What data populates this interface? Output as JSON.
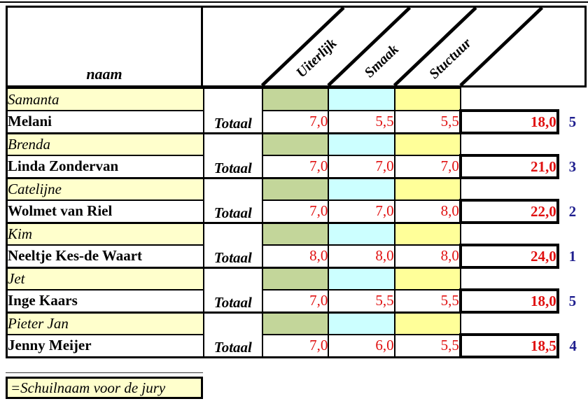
{
  "header": {
    "name_column_label": "naam",
    "totaal_label": "Totaal",
    "criteria": [
      "Uiterlijk",
      "Smaak",
      "Stuctuur"
    ]
  },
  "pairs": [
    {
      "pseudonym": "Samanta",
      "name": "Melani",
      "scores": [
        "7,0",
        "5,5",
        "5,5"
      ],
      "total": "18,0",
      "rank": "5"
    },
    {
      "pseudonym": "Brenda",
      "name": "Linda Zondervan",
      "scores": [
        "7,0",
        "7,0",
        "7,0"
      ],
      "total": "21,0",
      "rank": "3"
    },
    {
      "pseudonym": "Catelijne",
      "name": "Wolmet van Riel",
      "scores": [
        "7,0",
        "7,0",
        "8,0"
      ],
      "total": "22,0",
      "rank": "2"
    },
    {
      "pseudonym": "Kim",
      "name": "Neeltje Kes-de Waart",
      "scores": [
        "8,0",
        "8,0",
        "8,0"
      ],
      "total": "24,0",
      "rank": "1"
    },
    {
      "pseudonym": "Jet",
      "name": "Inge Kaars",
      "scores": [
        "7,0",
        "5,5",
        "5,5"
      ],
      "total": "18,0",
      "rank": "5"
    },
    {
      "pseudonym": "Pieter Jan",
      "name": "Jenny Meijer",
      "scores": [
        "7,0",
        "6,0",
        "5,5"
      ],
      "total": "18,5",
      "rank": "4"
    }
  ],
  "legend": {
    "text": "=Schuilnaam voor de jury"
  },
  "colors": {
    "pseudonym_row": "#FFFFCC",
    "uiterlijk_cell": "#C3D69A",
    "smaak_cell": "#CCFFFF",
    "stuctuur_cell": "#FFFF99",
    "score_text": "#E01010",
    "rank_text": "#1F1F8F",
    "border": "#000000"
  }
}
